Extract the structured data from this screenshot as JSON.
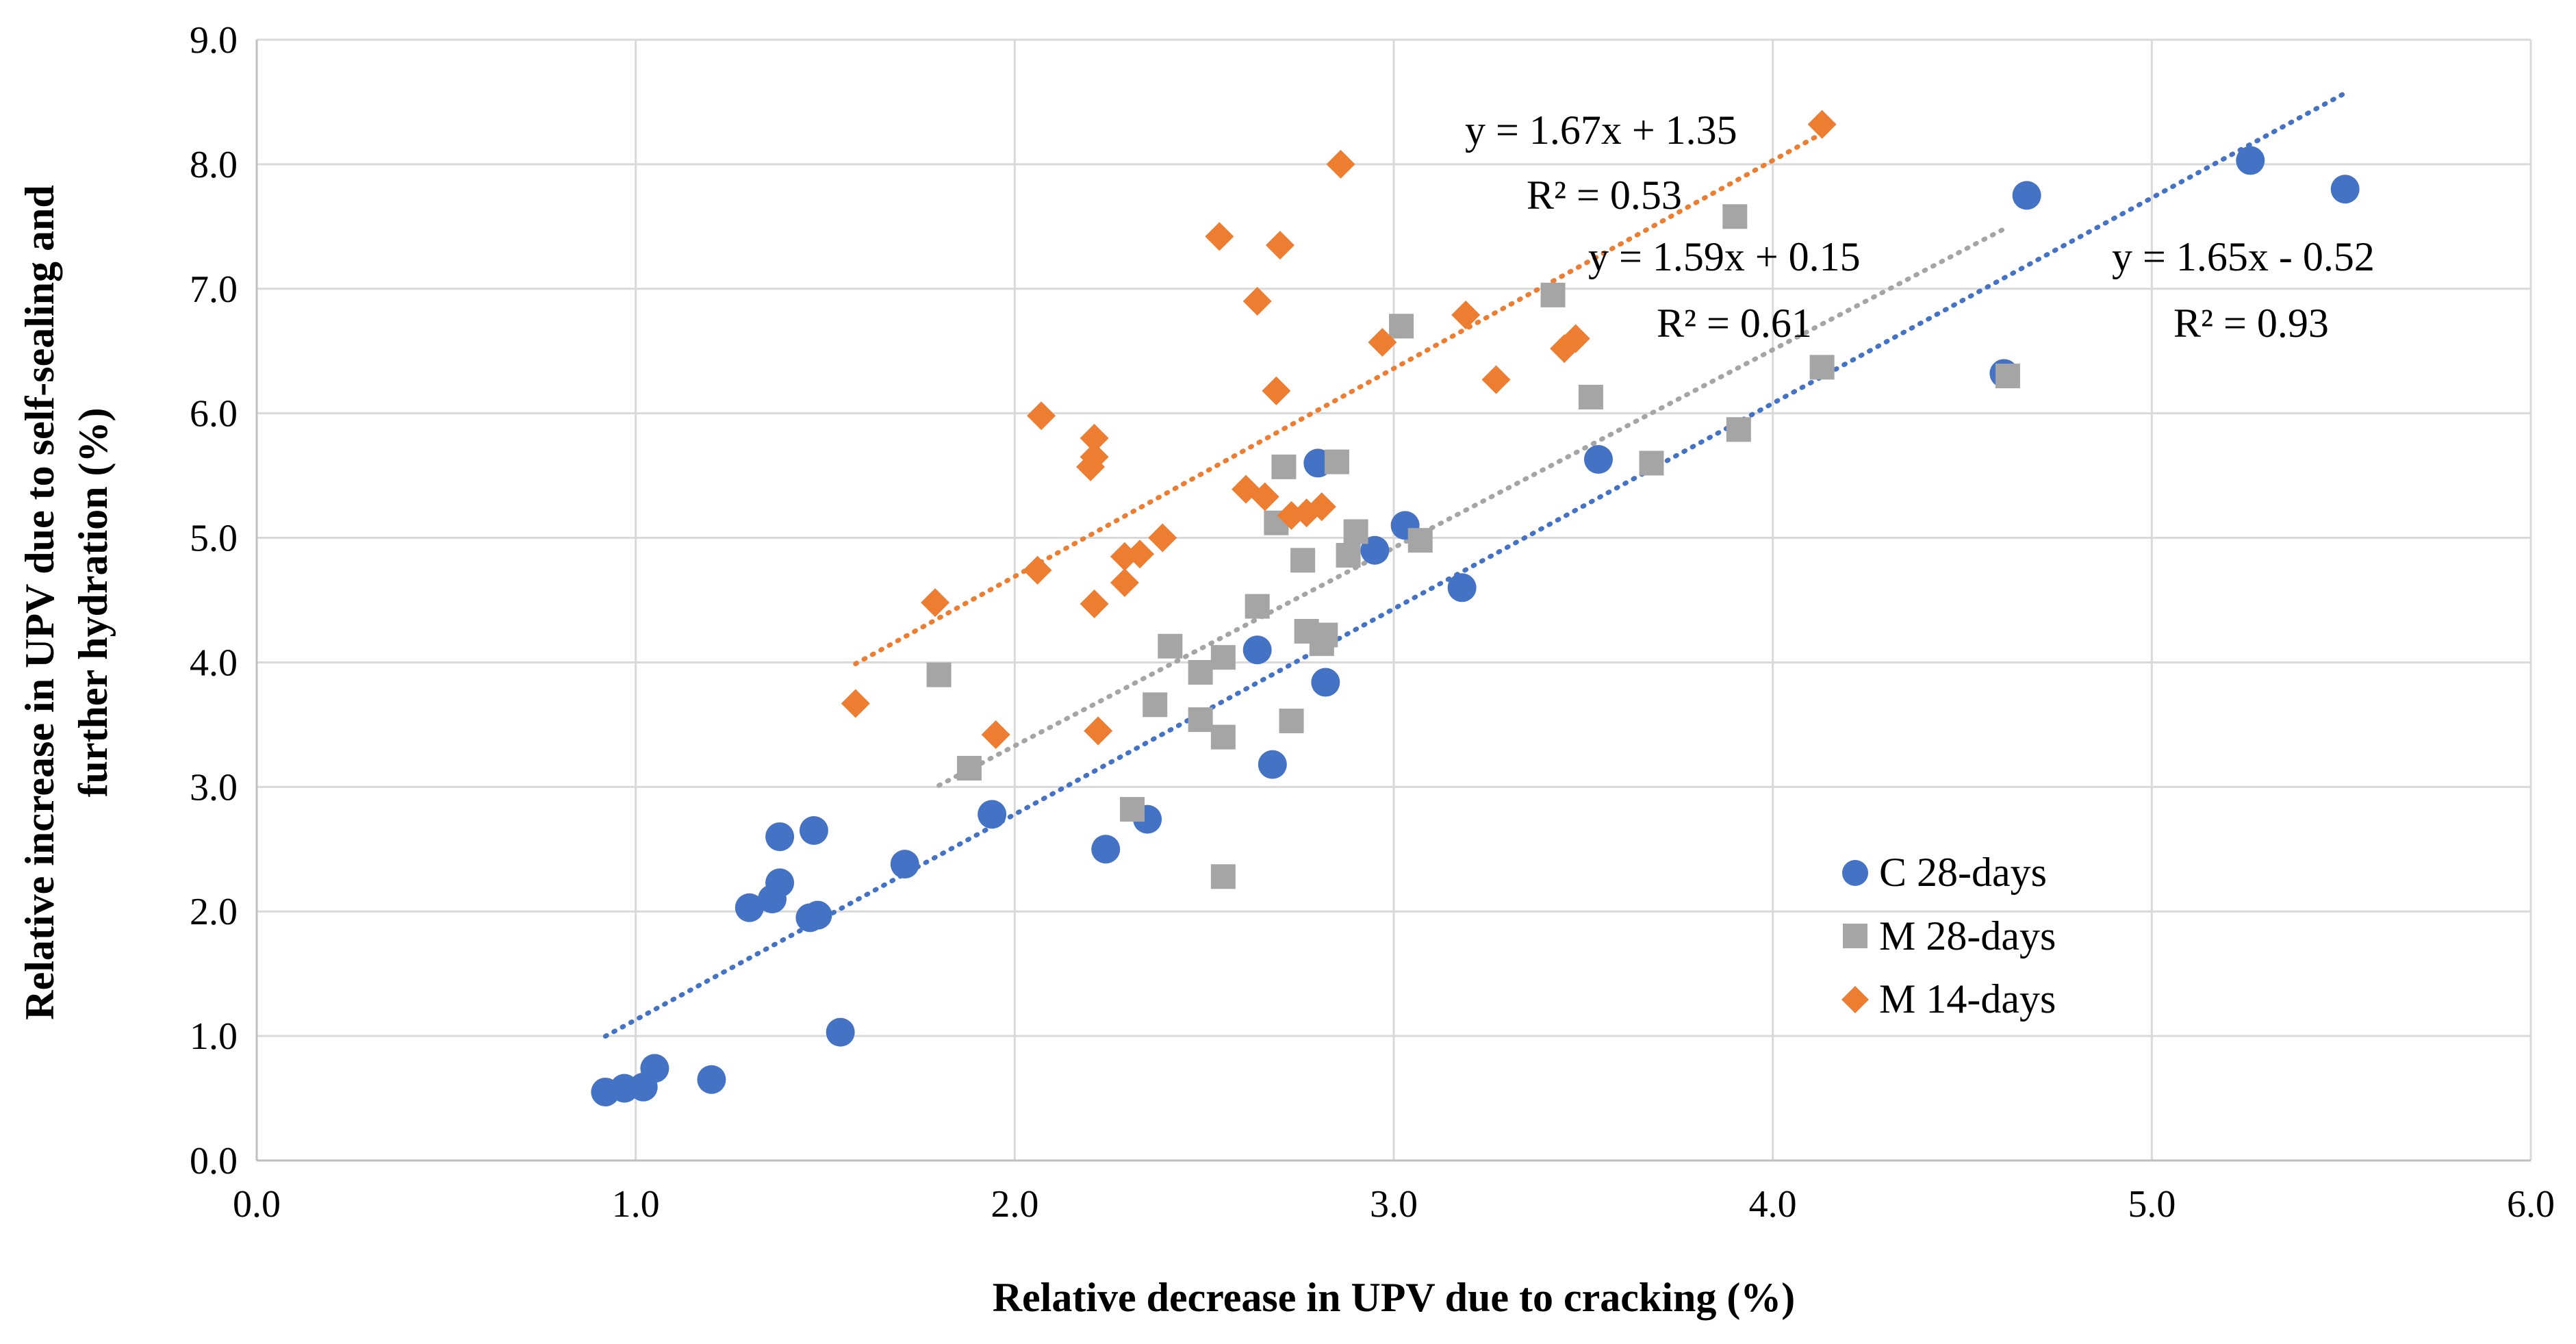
{
  "chart_data": {
    "type": "scatter",
    "title": "",
    "xlabel": "Relative decrease in UPV due to cracking (%)",
    "ylabel": "Relative increase in UPV due to self-sealing and further hydration (%)",
    "ylabel_lines": [
      "Relative increase in UPV due to self-sealing and",
      "further hydration (%)"
    ],
    "xlim": [
      0,
      6
    ],
    "ylim": [
      0,
      9
    ],
    "x_ticks": [
      0,
      1,
      2,
      3,
      4,
      5,
      6
    ],
    "y_ticks": [
      0,
      1,
      2,
      3,
      4,
      5,
      6,
      7,
      8,
      9
    ],
    "x_tick_labels": [
      "0.0",
      "1.0",
      "2.0",
      "3.0",
      "4.0",
      "5.0",
      "6.0"
    ],
    "y_tick_labels": [
      "0.0",
      "1.0",
      "2.0",
      "3.0",
      "4.0",
      "5.0",
      "6.0",
      "7.0",
      "8.0",
      "9.0"
    ],
    "grid": true,
    "legend_position": "bottom-right",
    "series": [
      {
        "name": "C 28-days",
        "marker": "circle",
        "color": "#4472c4",
        "points": [
          [
            0.92,
            0.55
          ],
          [
            0.97,
            0.58
          ],
          [
            1.02,
            0.59
          ],
          [
            1.05,
            0.74
          ],
          [
            1.2,
            0.65
          ],
          [
            1.3,
            2.03
          ],
          [
            1.36,
            2.1
          ],
          [
            1.38,
            2.23
          ],
          [
            1.38,
            2.6
          ],
          [
            1.46,
            1.95
          ],
          [
            1.48,
            1.97
          ],
          [
            1.47,
            2.65
          ],
          [
            1.54,
            1.03
          ],
          [
            1.71,
            2.38
          ],
          [
            1.94,
            2.78
          ],
          [
            2.24,
            2.5
          ],
          [
            2.35,
            2.74
          ],
          [
            2.64,
            4.1
          ],
          [
            2.68,
            3.18
          ],
          [
            2.8,
            5.6
          ],
          [
            2.82,
            3.84
          ],
          [
            2.95,
            4.9
          ],
          [
            3.03,
            5.1
          ],
          [
            3.18,
            4.6
          ],
          [
            3.54,
            5.63
          ],
          [
            4.61,
            6.32
          ],
          [
            4.67,
            7.75
          ],
          [
            5.26,
            8.03
          ],
          [
            5.51,
            7.8
          ]
        ],
        "trendline": {
          "x": [
            0.92,
            5.51
          ],
          "equation": "y = 1.65x - 0.52",
          "r2": "R² = 0.93"
        }
      },
      {
        "name": "M 28-days",
        "marker": "square",
        "color": "#a5a5a5",
        "points": [
          [
            1.8,
            3.9
          ],
          [
            1.88,
            3.15
          ],
          [
            2.31,
            2.82
          ],
          [
            2.37,
            3.66
          ],
          [
            2.41,
            4.13
          ],
          [
            2.49,
            3.92
          ],
          [
            2.49,
            3.54
          ],
          [
            2.55,
            4.04
          ],
          [
            2.55,
            3.4
          ],
          [
            2.55,
            2.28
          ],
          [
            2.64,
            4.45
          ],
          [
            2.69,
            5.12
          ],
          [
            2.71,
            5.57
          ],
          [
            2.73,
            3.53
          ],
          [
            2.76,
            4.82
          ],
          [
            2.77,
            4.25
          ],
          [
            2.81,
            4.15
          ],
          [
            2.82,
            4.22
          ],
          [
            2.85,
            5.61
          ],
          [
            2.88,
            4.86
          ],
          [
            2.9,
            5.05
          ],
          [
            3.02,
            6.7
          ],
          [
            3.07,
            4.98
          ],
          [
            3.42,
            6.95
          ],
          [
            3.52,
            6.13
          ],
          [
            3.68,
            5.6
          ],
          [
            3.9,
            7.58
          ],
          [
            3.91,
            5.87
          ],
          [
            4.13,
            6.37
          ],
          [
            4.62,
            6.3
          ]
        ],
        "trendline": {
          "x": [
            1.8,
            4.62
          ],
          "equation": "y = 1.59x + 0.15",
          "r2": "R² = 0.61"
        }
      },
      {
        "name": "M 14-days",
        "marker": "diamond",
        "color": "#ed7d31",
        "points": [
          [
            1.58,
            3.67
          ],
          [
            1.79,
            4.48
          ],
          [
            1.95,
            3.42
          ],
          [
            2.06,
            4.74
          ],
          [
            2.07,
            5.98
          ],
          [
            2.2,
            5.57
          ],
          [
            2.21,
            5.65
          ],
          [
            2.21,
            5.8
          ],
          [
            2.21,
            4.47
          ],
          [
            2.22,
            3.45
          ],
          [
            2.29,
            4.85
          ],
          [
            2.29,
            4.64
          ],
          [
            2.33,
            4.87
          ],
          [
            2.39,
            5.0
          ],
          [
            2.54,
            7.42
          ],
          [
            2.61,
            5.39
          ],
          [
            2.64,
            6.9
          ],
          [
            2.66,
            5.33
          ],
          [
            2.69,
            6.18
          ],
          [
            2.7,
            7.35
          ],
          [
            2.73,
            5.18
          ],
          [
            2.77,
            5.2
          ],
          [
            2.81,
            5.25
          ],
          [
            2.86,
            8.0
          ],
          [
            2.97,
            6.57
          ],
          [
            3.19,
            6.79
          ],
          [
            3.27,
            6.27
          ],
          [
            3.45,
            6.52
          ],
          [
            3.48,
            6.6
          ],
          [
            4.13,
            8.32
          ]
        ],
        "trendline": {
          "x": [
            1.58,
            4.13
          ],
          "equation": "y = 1.67x + 1.35",
          "r2": "R² = 0.53"
        }
      }
    ],
    "legend": [
      "C 28-days",
      "M 28-days",
      "M 14-days"
    ]
  }
}
